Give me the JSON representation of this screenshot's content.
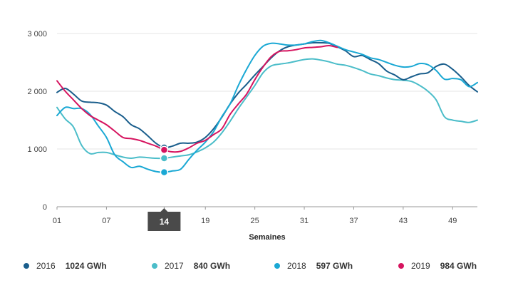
{
  "chart_data": {
    "type": "line",
    "title": "",
    "xlabel": "Semaines",
    "ylabel": "",
    "ylim": [
      0,
      3000
    ],
    "xlim": [
      1,
      52
    ],
    "x_ticks": [
      "01",
      "07",
      "14",
      "19",
      "25",
      "31",
      "37",
      "43",
      "49"
    ],
    "y_ticks": [
      "0",
      "1 000",
      "2 000",
      "3 000"
    ],
    "y_tick_values": [
      0,
      1000,
      2000,
      3000
    ],
    "grid": "horizontal",
    "highlighted_week": "14",
    "series": [
      {
        "name": "2016",
        "color": "#1a5e8c",
        "highlight_value": "1024 GWh",
        "x": [
          1,
          2,
          3,
          4,
          5,
          6,
          7,
          8,
          9,
          10,
          11,
          12,
          13,
          14,
          15,
          16,
          17,
          18,
          19,
          20,
          21,
          22,
          23,
          24,
          25,
          26,
          27,
          28,
          29,
          30,
          31,
          32,
          33,
          34,
          35,
          36,
          37,
          38,
          39,
          40,
          41,
          42,
          43,
          44,
          45,
          46,
          47,
          48,
          49,
          50,
          51,
          52
        ],
        "values": [
          1980,
          2050,
          1950,
          1830,
          1810,
          1800,
          1760,
          1650,
          1560,
          1420,
          1350,
          1230,
          1100,
          1024,
          1050,
          1100,
          1100,
          1120,
          1200,
          1350,
          1550,
          1780,
          1970,
          2120,
          2280,
          2430,
          2580,
          2700,
          2770,
          2800,
          2820,
          2840,
          2840,
          2830,
          2770,
          2700,
          2600,
          2620,
          2550,
          2480,
          2350,
          2280,
          2200,
          2250,
          2300,
          2320,
          2430,
          2470,
          2380,
          2250,
          2100,
          1990
        ]
      },
      {
        "name": "2017",
        "color": "#4bbdc9",
        "highlight_value": "840 GWh",
        "x": [
          1,
          2,
          3,
          4,
          5,
          6,
          7,
          8,
          9,
          10,
          11,
          12,
          13,
          14,
          15,
          16,
          17,
          18,
          19,
          20,
          21,
          22,
          23,
          24,
          25,
          26,
          27,
          28,
          29,
          30,
          31,
          32,
          33,
          34,
          35,
          36,
          37,
          38,
          39,
          40,
          41,
          42,
          43,
          44,
          45,
          46,
          47,
          48,
          49,
          50,
          51,
          52
        ],
        "values": [
          1720,
          1520,
          1380,
          1060,
          920,
          940,
          940,
          900,
          860,
          840,
          860,
          850,
          840,
          840,
          860,
          880,
          900,
          950,
          1020,
          1120,
          1280,
          1480,
          1700,
          1900,
          2100,
          2320,
          2440,
          2470,
          2490,
          2520,
          2550,
          2560,
          2540,
          2510,
          2470,
          2450,
          2410,
          2360,
          2300,
          2270,
          2230,
          2200,
          2190,
          2170,
          2100,
          2000,
          1850,
          1560,
          1500,
          1480,
          1460,
          1500
        ]
      },
      {
        "name": "2018",
        "color": "#1aa8d4",
        "highlight_value": "597 GWh",
        "x": [
          1,
          2,
          3,
          4,
          5,
          6,
          7,
          8,
          9,
          10,
          11,
          12,
          13,
          14,
          15,
          16,
          17,
          18,
          19,
          20,
          21,
          22,
          23,
          24,
          25,
          26,
          27,
          28,
          29,
          30,
          31,
          32,
          33,
          34,
          35,
          36,
          37,
          38,
          39,
          40,
          41,
          42,
          43,
          44,
          45,
          46,
          47,
          48,
          49,
          50,
          51,
          52
        ],
        "values": [
          1580,
          1720,
          1700,
          1700,
          1600,
          1400,
          1200,
          900,
          780,
          680,
          700,
          650,
          610,
          597,
          620,
          650,
          820,
          980,
          1120,
          1300,
          1560,
          1780,
          2100,
          2380,
          2620,
          2780,
          2830,
          2820,
          2800,
          2800,
          2820,
          2860,
          2880,
          2840,
          2780,
          2720,
          2680,
          2640,
          2580,
          2550,
          2500,
          2450,
          2420,
          2430,
          2480,
          2460,
          2360,
          2210,
          2220,
          2200,
          2080,
          2150
        ]
      },
      {
        "name": "2019",
        "color": "#d6145f",
        "highlight_value": "984 GWh",
        "x": [
          1,
          2,
          3,
          4,
          5,
          6,
          7,
          8,
          9,
          10,
          11,
          12,
          13,
          14,
          15,
          16,
          17,
          18,
          19,
          20,
          21,
          22,
          23,
          24,
          25,
          26,
          27,
          28,
          29,
          30,
          31,
          32,
          33,
          34,
          35
        ],
        "values": [
          2180,
          2000,
          1850,
          1700,
          1580,
          1500,
          1420,
          1310,
          1200,
          1180,
          1150,
          1100,
          1050,
          984,
          950,
          960,
          1020,
          1100,
          1150,
          1250,
          1350,
          1600,
          1780,
          1950,
          2200,
          2420,
          2600,
          2690,
          2700,
          2720,
          2750,
          2760,
          2770,
          2790,
          2760
        ]
      }
    ]
  }
}
